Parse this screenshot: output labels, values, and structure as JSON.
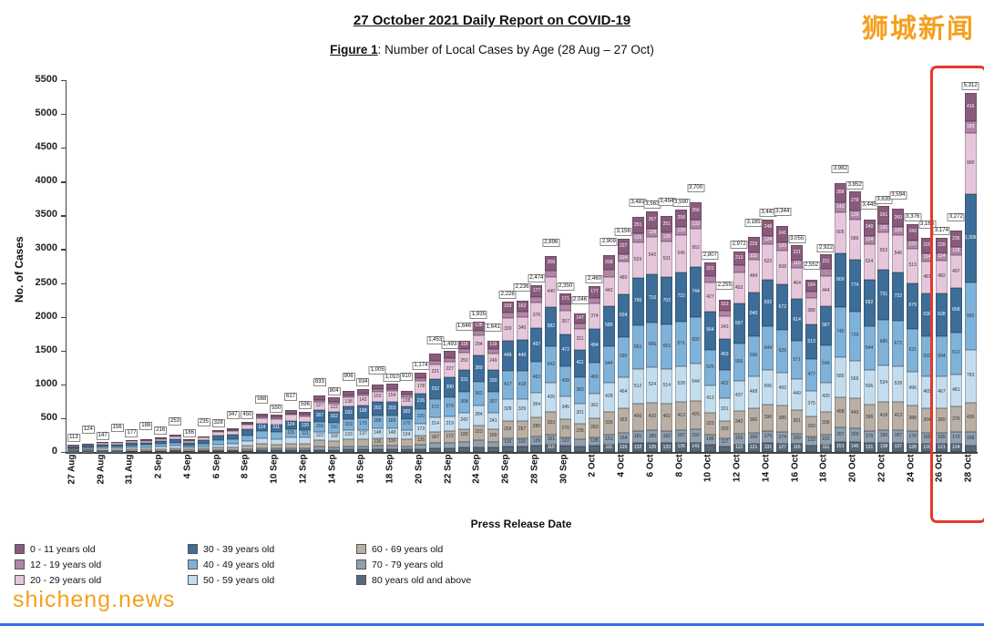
{
  "page": {
    "title": "27 October 2021 Daily Report on COVID-19",
    "figure_label": "Figure 1",
    "figure_caption_rest": ": Number of Local Cases by Age (28 Aug – 27 Oct)"
  },
  "watermarks": {
    "top_right": "狮城新闻",
    "bottom_left": "shicheng.news"
  },
  "highlight": {
    "color": "#e8372c",
    "start_category": "26 Oct",
    "end_category": "28 Oct"
  },
  "chart_data": {
    "type": "bar",
    "stacked": true,
    "title": "Number of Local Cases by Age (28 Aug – 27 Oct)",
    "xlabel": "Press Release Date",
    "ylabel": "No. of Cases",
    "ylim": [
      0,
      5500
    ],
    "yticks": [
      0,
      500,
      1000,
      1500,
      2000,
      2500,
      3000,
      3500,
      4000,
      4500,
      5000,
      5500
    ],
    "grid": false,
    "legend_position": "bottom-left",
    "categories": [
      "27 Aug",
      "28 Aug",
      "29 Aug",
      "30 Aug",
      "31 Aug",
      "1 Sep",
      "2 Sep",
      "3 Sep",
      "4 Sep",
      "5 Sep",
      "6 Sep",
      "7 Sep",
      "8 Sep",
      "9 Sep",
      "10 Sep",
      "11 Sep",
      "12 Sep",
      "13 Sep",
      "14 Sep",
      "15 Sep",
      "16 Sep",
      "17 Sep",
      "18 Sep",
      "19 Sep",
      "20 Sep",
      "21 Sep",
      "22 Sep",
      "23 Sep",
      "24 Sep",
      "25 Sep",
      "26 Sep",
      "27 Sep",
      "28 Sep",
      "29 Sep",
      "30 Sep",
      "1 Oct",
      "2 Oct",
      "3 Oct",
      "4 Oct",
      "5 Oct",
      "6 Oct",
      "7 Oct",
      "8 Oct",
      "9 Oct",
      "10 Oct",
      "11 Oct",
      "12 Oct",
      "13 Oct",
      "14 Oct",
      "15 Oct",
      "16 Oct",
      "17 Oct",
      "18 Oct",
      "19 Oct",
      "20 Oct",
      "21 Oct",
      "22 Oct",
      "23 Oct",
      "24 Oct",
      "25 Oct",
      "26 Oct",
      "27 Oct",
      "28 Oct"
    ],
    "totals": [
      113,
      124,
      147,
      156,
      177,
      188,
      216,
      253,
      186,
      235,
      328,
      347,
      450,
      568,
      550,
      617,
      596,
      833,
      804,
      906,
      934,
      1005,
      1010,
      910,
      1174,
      1453,
      1493,
      1646,
      1935,
      1641,
      2228,
      2236,
      2474,
      2896,
      2350,
      2046,
      2460,
      2909,
      3156,
      3481,
      3563,
      3494,
      3590,
      3700,
      2807,
      2255,
      2972,
      3185,
      3443,
      3344,
      3055,
      2552,
      2922,
      3982,
      3852,
      3445,
      3635,
      3594,
      3376,
      3166,
      3174,
      3272,
      5312
    ],
    "age_groups": [
      {
        "label": "80 years old and above",
        "color": "#55697c",
        "fraction": 0.038
      },
      {
        "label": "70 - 79 years old",
        "color": "#8fa0af",
        "fraction": 0.052
      },
      {
        "label": "60 - 69 years old",
        "color": "#b9afa5",
        "fraction": 0.115
      },
      {
        "label": "50 - 59 years old",
        "color": "#c3ddef",
        "fraction": 0.147
      },
      {
        "label": "40 - 49 years old",
        "color": "#7fb2d9",
        "fraction": 0.187
      },
      {
        "label": "30 - 39 years old",
        "color": "#3d6e99",
        "fraction": 0.201
      },
      {
        "label": "20 - 29 years old",
        "color": "#e6c6db",
        "fraction": 0.152
      },
      {
        "label": "12 - 19 years old",
        "color": "#b285a9",
        "fraction": 0.036
      },
      {
        "label": "0 - 11 years old",
        "color": "#8a5a7c",
        "fraction": 0.072
      }
    ],
    "overrides": {
      "28 Oct": [
        95,
        198,
        436,
        783,
        992,
        1309,
        900,
        183,
        416
      ]
    },
    "note": "Daily totals read from bar labels; per-age segment values estimated from segment heights except final bar (exact labels: 416, 183, 900, 1,309, 992, 783, 436, 198)."
  }
}
